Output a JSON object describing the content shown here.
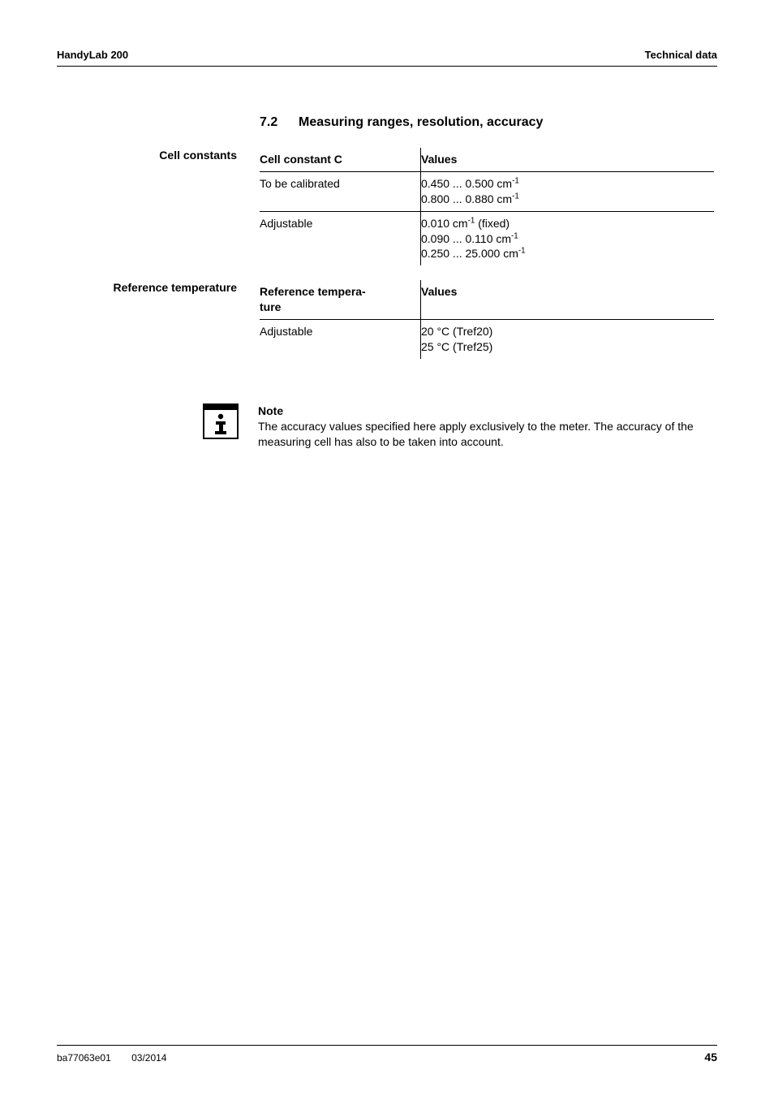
{
  "header": {
    "left": "HandyLab 200",
    "right": "Technical data"
  },
  "section": {
    "number": "7.2",
    "title": "Measuring ranges, resolution, accuracy"
  },
  "cell_constants": {
    "side_label": "Cell constants",
    "header_c1": "Cell constant C",
    "header_c2": "Values",
    "rows": [
      {
        "c1": "To be calibrated",
        "c2": "0.450 ... 0.500 cm<sup>-1</sup><br>0.800 ... 0.880 cm<sup>-1</sup>"
      },
      {
        "c1": "Adjustable",
        "c2": "0.010 cm<sup>-1</sup> (fixed)<br>0.090 ... 0.110 cm<sup>-1</sup><br>0.250 ... 25.000 cm<sup>-1</sup>"
      }
    ]
  },
  "ref_temp": {
    "side_label": "Reference temperature",
    "header_c1": "Reference tempera-<br>ture",
    "header_c2": "Values",
    "rows": [
      {
        "c1": "Adjustable",
        "c2": "20 °C (Tref20)<br>25 °C (Tref25)"
      }
    ]
  },
  "note": {
    "heading": "Note",
    "body": "The accuracy values specified here apply exclusively to the meter. The accuracy of the measuring cell has also to be taken into account."
  },
  "footer": {
    "doc_id": "ba77063e01",
    "date": "03/2014",
    "page": "45"
  }
}
